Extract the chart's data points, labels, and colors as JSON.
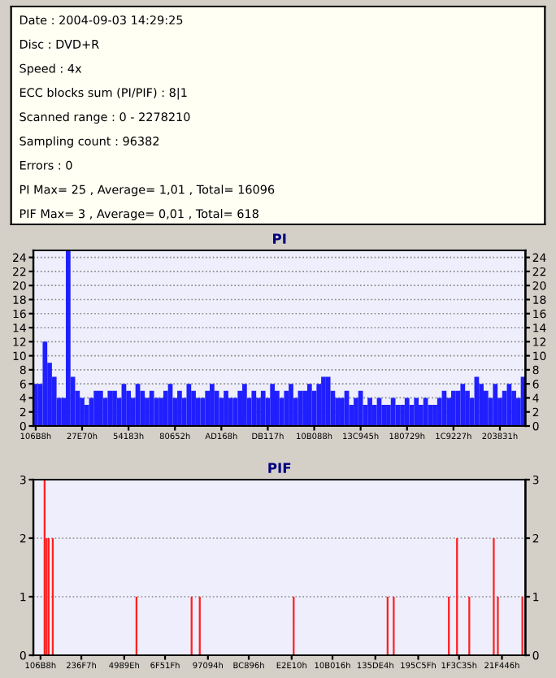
{
  "chart_data": [
    {
      "type": "other",
      "annotations": [
        "Date : 2004-09-03 14:29:25",
        "Disc : DVD+R",
        "Speed : 4x",
        "ECC blocks sum (PI/PIF) : 8|1",
        "Scanned range : 0 - 2278210",
        "Sampling count : 96382",
        "Errors : 0",
        "PI Max= 25 , Average= 1,01 , Total= 16096",
        "PIF Max= 3 , Average= 0,01 , Total= 618"
      ]
    },
    {
      "type": "bar",
      "title": "PI",
      "color": "#1f1fff",
      "grid": "y",
      "ylim": [
        0,
        25
      ],
      "yticks": [
        0,
        2,
        4,
        6,
        8,
        10,
        12,
        14,
        16,
        18,
        20,
        22,
        24
      ],
      "y2lim": [
        0,
        25
      ],
      "y2ticks": [
        0,
        2,
        4,
        6,
        8,
        10,
        12,
        14,
        16,
        18,
        20,
        22,
        24
      ],
      "categories": [
        "106B8h",
        null,
        null,
        null,
        null,
        null,
        null,
        null,
        null,
        null,
        "27E70h",
        null,
        null,
        null,
        null,
        null,
        null,
        null,
        null,
        null,
        "54183h",
        null,
        null,
        null,
        null,
        null,
        null,
        null,
        null,
        null,
        "80652h",
        null,
        null,
        null,
        null,
        null,
        null,
        null,
        null,
        null,
        "AD168h",
        null,
        null,
        null,
        null,
        null,
        null,
        null,
        null,
        null,
        "DB117h",
        null,
        null,
        null,
        null,
        null,
        null,
        null,
        null,
        null,
        "10B088h",
        null,
        null,
        null,
        null,
        null,
        null,
        null,
        null,
        null,
        "13C945h",
        null,
        null,
        null,
        null,
        null,
        null,
        null,
        null,
        null,
        "180729h",
        null,
        null,
        null,
        null,
        null,
        null,
        null,
        null,
        null,
        "1C9227h",
        null,
        null,
        null,
        null,
        null,
        null,
        null,
        null,
        null,
        "203831h",
        null,
        null,
        null,
        null,
        null
      ],
      "values": [
        6,
        6,
        12,
        9,
        7,
        4,
        4,
        25,
        7,
        5,
        4,
        3,
        4,
        5,
        5,
        4,
        5,
        5,
        4,
        6,
        5,
        4,
        6,
        5,
        4,
        5,
        4,
        4,
        5,
        6,
        4,
        5,
        4,
        6,
        5,
        4,
        4,
        5,
        6,
        5,
        4,
        5,
        4,
        4,
        5,
        6,
        4,
        5,
        4,
        5,
        4,
        6,
        5,
        4,
        5,
        6,
        4,
        5,
        5,
        6,
        5,
        6,
        7,
        7,
        5,
        4,
        4,
        5,
        3,
        4,
        5,
        3,
        4,
        3,
        4,
        3,
        3,
        4,
        3,
        3,
        4,
        3,
        4,
        3,
        4,
        3,
        3,
        4,
        5,
        4,
        5,
        5,
        6,
        5,
        4,
        7,
        6,
        5,
        4,
        6,
        4,
        5,
        6,
        5,
        4,
        7
      ]
    },
    {
      "type": "bar",
      "title": "PIF",
      "color": "#ff2020",
      "grid": "y",
      "ylim": [
        0,
        3
      ],
      "yticks": [
        0,
        1,
        2,
        3
      ],
      "y2lim": [
        0,
        3
      ],
      "y2ticks": [
        0,
        1,
        2,
        3
      ],
      "categories": [
        null,
        null,
        null,
        "106B8h",
        null,
        null,
        null,
        null,
        null,
        null,
        null,
        null,
        null,
        null,
        null,
        null,
        null,
        null,
        null,
        null,
        null,
        null,
        null,
        "236F7h",
        null,
        null,
        null,
        null,
        null,
        null,
        null,
        null,
        null,
        null,
        null,
        null,
        null,
        null,
        null,
        null,
        null,
        null,
        null,
        null,
        "4989Eh",
        null,
        null,
        null,
        null,
        null,
        null,
        null,
        null,
        null,
        null,
        null,
        null,
        null,
        null,
        null,
        null,
        null,
        null,
        null,
        "6F51Fh",
        null,
        null,
        null,
        null,
        null,
        null,
        null,
        null,
        null,
        null,
        null,
        null,
        null,
        null,
        null,
        null,
        null,
        null,
        null,
        null,
        "97094h",
        null,
        null,
        null,
        null,
        null,
        null,
        null,
        null,
        null,
        null,
        null,
        null,
        null,
        null,
        null,
        null,
        null,
        null,
        null,
        "BC896h",
        null,
        null,
        null,
        null,
        null,
        null,
        null,
        null,
        null,
        null,
        null,
        null,
        null,
        null,
        null,
        null,
        null,
        null,
        null,
        null,
        "E2E10h",
        null,
        null,
        null,
        null,
        null,
        null,
        null,
        null,
        null,
        null,
        null,
        null,
        null,
        null,
        null,
        null,
        null,
        null,
        null,
        "10B016h",
        null,
        null,
        null,
        null,
        null,
        null,
        null,
        null,
        null,
        null,
        null,
        null,
        null,
        null,
        null,
        null,
        null,
        null,
        null,
        null,
        "135DE4h",
        null,
        null,
        null,
        null,
        null,
        null,
        null,
        null,
        null,
        null,
        null,
        null,
        null,
        null,
        null,
        null,
        null,
        null,
        null,
        null,
        "195C5Fh",
        null,
        null,
        null,
        null,
        null,
        null,
        null,
        null,
        null,
        null,
        null,
        null,
        null,
        null,
        null,
        null,
        null,
        null,
        null,
        "1F3C35h",
        null,
        null,
        null,
        null,
        null,
        null,
        null,
        null,
        null,
        null,
        null,
        null,
        null,
        null,
        null,
        null,
        null,
        null,
        null,
        null,
        "21F446h",
        null,
        null,
        null,
        null,
        null,
        null,
        null,
        null,
        null,
        null,
        null
      ],
      "values": [
        0,
        0,
        0,
        0,
        0,
        3,
        2,
        2,
        0,
        2,
        0,
        0,
        0,
        0,
        0,
        0,
        0,
        0,
        0,
        0,
        0,
        0,
        0,
        0,
        0,
        0,
        0,
        0,
        0,
        0,
        0,
        0,
        0,
        0,
        0,
        0,
        0,
        0,
        0,
        0,
        0,
        0,
        0,
        0,
        0,
        0,
        0,
        0,
        0,
        0,
        1,
        0,
        0,
        0,
        0,
        0,
        0,
        0,
        0,
        0,
        0,
        0,
        0,
        0,
        0,
        0,
        0,
        0,
        0,
        0,
        0,
        0,
        0,
        0,
        0,
        0,
        0,
        1,
        0,
        0,
        0,
        1,
        0,
        0,
        0,
        0,
        0,
        0,
        0,
        0,
        0,
        0,
        0,
        0,
        0,
        0,
        0,
        0,
        0,
        0,
        0,
        0,
        0,
        0,
        0,
        0,
        0,
        0,
        0,
        0,
        0,
        0,
        0,
        0,
        0,
        0,
        0,
        0,
        0,
        0,
        0,
        0,
        0,
        0,
        0,
        0,
        0,
        1,
        0,
        0,
        0,
        0,
        0,
        0,
        0,
        0,
        0,
        0,
        0,
        0,
        0,
        0,
        0,
        0,
        0,
        0,
        0,
        0,
        0,
        0,
        0,
        0,
        0,
        0,
        0,
        0,
        0,
        0,
        0,
        0,
        0,
        0,
        0,
        0,
        0,
        0,
        0,
        0,
        0,
        0,
        0,
        0,
        0,
        1,
        0,
        0,
        1,
        0,
        0,
        0,
        0,
        0,
        0,
        0,
        0,
        0,
        0,
        0,
        0,
        0,
        0,
        0,
        0,
        0,
        0,
        0,
        0,
        0,
        0,
        0,
        0,
        0,
        0,
        1,
        0,
        0,
        0,
        2,
        0,
        0,
        0,
        0,
        0,
        1,
        0,
        0,
        0,
        0,
        0,
        0,
        0,
        0,
        0,
        0,
        0,
        2,
        0,
        1,
        0,
        0,
        0,
        0,
        0,
        0,
        0,
        0,
        0,
        0,
        0,
        1,
        0
      ]
    }
  ]
}
